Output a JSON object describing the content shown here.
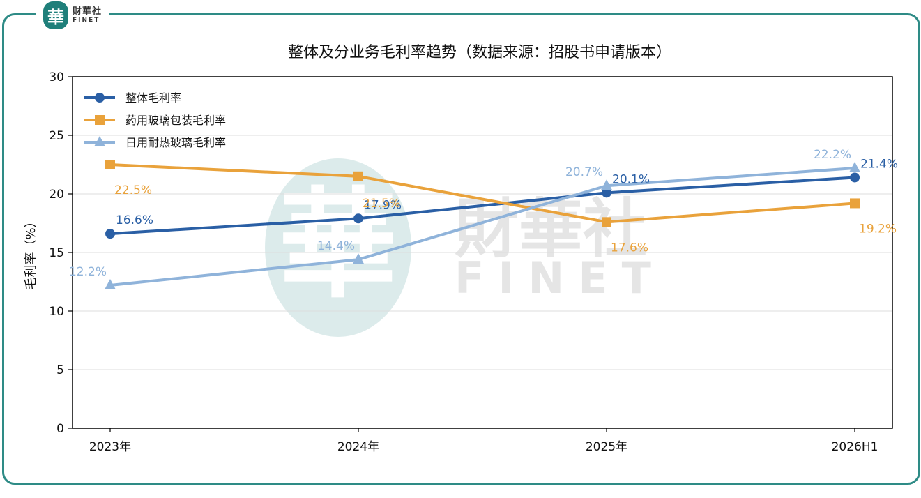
{
  "brand": {
    "seal_char": "華",
    "name_cn": "财華社",
    "name_en": "FINET"
  },
  "watermark": {
    "cn": "財華社",
    "en": "FINET",
    "seal_char": "華"
  },
  "chart_data": {
    "type": "line",
    "title": "整体及分业务毛利率趋势（数据来源：招股书申请版本）",
    "xlabel": "",
    "ylabel": "毛利率（%）",
    "categories": [
      "2023年",
      "2024年",
      "2025年",
      "2026H1"
    ],
    "ylim": [
      0,
      30
    ],
    "yticks": [
      0,
      5,
      10,
      15,
      20,
      25,
      30
    ],
    "grid": "horizontal",
    "legend_position": "top-left",
    "series": [
      {
        "name": "整体毛利率",
        "marker": "circle",
        "color": "#2a5fa5",
        "values": [
          16.6,
          17.9,
          20.1,
          21.4
        ],
        "labels": [
          "16.6%",
          "17.9%",
          "20.1%",
          "21.4%"
        ]
      },
      {
        "name": "药用玻璃包装毛利率",
        "marker": "square",
        "color": "#e9a23b",
        "values": [
          22.5,
          21.5,
          17.6,
          19.2
        ],
        "labels": [
          "22.5%",
          "21.5%",
          "17.6%",
          "19.2%"
        ]
      },
      {
        "name": "日用耐热玻璃毛利率",
        "marker": "triangle",
        "color": "#8fb3da",
        "values": [
          12.2,
          14.4,
          20.7,
          22.2
        ],
        "labels": [
          "12.2%",
          "14.4%",
          "20.7%",
          "22.2%"
        ]
      }
    ]
  }
}
